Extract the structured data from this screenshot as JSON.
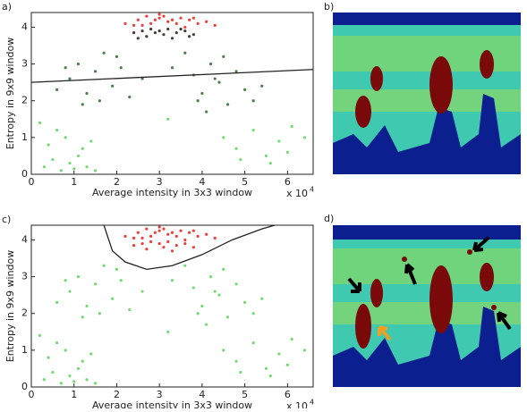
{
  "chart_data": [
    {
      "type": "scatter",
      "panel_label": "a)",
      "xlabel": "Average intensity in 3x3 window",
      "ylabel": "Entropy in 9x9 window",
      "x_scale_label": "x 10",
      "x_scale_exponent": "4",
      "xlim": [
        0,
        6.6
      ],
      "ylim": [
        0,
        4.4
      ],
      "xticks": [
        0,
        1,
        2,
        3,
        4,
        5,
        6
      ],
      "yticks": [
        0,
        1,
        2,
        3,
        4
      ],
      "series": [
        {
          "color": "#5cd35c",
          "x": [
            0.3,
            0.5,
            0.7,
            0.9,
            1.1,
            1.3,
            1.5,
            0.4,
            0.8,
            1.2,
            0.6,
            1.0,
            4.5,
            4.8,
            5.2,
            5.5,
            5.8,
            6.1,
            6.4,
            4.9,
            5.6,
            6.0,
            0.2,
            1.4,
            3.2
          ],
          "values": [
            0.2,
            0.4,
            0.1,
            0.3,
            0.5,
            0.2,
            0.1,
            0.8,
            1.0,
            0.7,
            1.2,
            0.15,
            1.0,
            0.7,
            1.2,
            0.5,
            0.9,
            1.3,
            1.0,
            0.4,
            0.3,
            0.6,
            1.4,
            0.9,
            1.5
          ]
        },
        {
          "color": "#2f6a2f",
          "x": [
            0.6,
            0.9,
            1.1,
            1.3,
            1.5,
            1.7,
            1.9,
            2.1,
            2.3,
            1.2,
            1.6,
            2.0,
            0.8,
            3.6,
            3.8,
            4.0,
            4.2,
            4.4,
            4.6,
            4.8,
            5.0,
            5.2,
            4.1,
            4.5,
            3.9,
            4.3,
            5.4,
            2.6,
            3.3
          ],
          "values": [
            2.3,
            2.6,
            3.0,
            2.2,
            2.8,
            3.3,
            2.4,
            2.9,
            2.1,
            1.9,
            2.0,
            3.2,
            2.9,
            3.3,
            2.7,
            2.2,
            3.0,
            2.5,
            1.9,
            2.8,
            2.3,
            2.0,
            1.7,
            3.2,
            2.0,
            2.6,
            2.4,
            2.6,
            2.9
          ]
        },
        {
          "color": "#e8201c",
          "x": [
            2.2,
            2.5,
            2.7,
            2.9,
            3.0,
            3.1,
            3.3,
            3.5,
            3.7,
            3.9,
            4.1,
            4.3,
            2.6,
            2.8,
            3.2,
            3.4,
            3.6,
            2.4,
            3.0,
            3.8
          ],
          "values": [
            4.1,
            4.2,
            4.3,
            4.2,
            4.25,
            4.3,
            4.2,
            4.25,
            4.2,
            4.1,
            4.15,
            4.05,
            4.05,
            4.1,
            4.15,
            4.1,
            4.0,
            4.05,
            4.35,
            4.25
          ]
        },
        {
          "color": "#2a1a12",
          "x": [
            2.4,
            2.6,
            2.8,
            3.0,
            3.2,
            3.4,
            3.6,
            3.8,
            2.7,
            3.1,
            3.3,
            2.9,
            3.5,
            2.5,
            3.7
          ],
          "values": [
            3.85,
            3.9,
            3.95,
            3.9,
            3.95,
            3.85,
            3.9,
            3.8,
            3.75,
            3.8,
            3.7,
            3.85,
            3.95,
            3.7,
            3.75
          ]
        }
      ],
      "boundary": {
        "color": "#222222",
        "x": [
          0,
          6.6
        ],
        "y": [
          2.5,
          2.85
        ]
      }
    },
    {
      "type": "scatter",
      "panel_label": "c)",
      "xlabel": "Average intensity in 3x3 window",
      "ylabel": "Entropy in 9x9 window",
      "x_scale_label": "x 10",
      "x_scale_exponent": "4",
      "xlim": [
        0,
        6.6
      ],
      "ylim": [
        0,
        4.4
      ],
      "xticks": [
        0,
        1,
        2,
        3,
        4,
        5,
        6
      ],
      "yticks": [
        0,
        1,
        2,
        3,
        4
      ],
      "series": [
        {
          "color": "#5cd35c",
          "x": [
            0.3,
            0.5,
            0.7,
            0.9,
            1.1,
            1.3,
            1.5,
            0.4,
            0.8,
            1.2,
            0.6,
            1.0,
            4.5,
            4.8,
            5.2,
            5.5,
            5.8,
            6.1,
            6.4,
            4.9,
            5.6,
            6.0,
            0.2,
            1.4,
            3.2,
            0.6,
            0.9,
            1.1,
            1.3,
            1.5,
            1.7,
            1.9,
            2.1,
            2.3,
            1.2,
            1.6,
            2.0,
            0.8,
            3.6,
            3.8,
            4.0,
            4.2,
            4.4,
            4.6,
            4.8,
            5.0,
            5.2,
            4.1,
            4.5,
            3.9,
            4.3,
            5.4,
            2.6,
            3.3
          ],
          "values": [
            0.2,
            0.4,
            0.1,
            0.3,
            0.5,
            0.2,
            0.1,
            0.8,
            1.0,
            0.7,
            1.2,
            0.15,
            1.0,
            0.7,
            1.2,
            0.5,
            0.9,
            1.3,
            1.0,
            0.4,
            0.3,
            0.6,
            1.4,
            0.9,
            1.5,
            2.3,
            2.6,
            3.0,
            2.2,
            2.8,
            3.3,
            2.4,
            2.9,
            2.1,
            1.9,
            2.0,
            3.2,
            2.9,
            3.3,
            2.7,
            2.2,
            3.0,
            2.5,
            1.9,
            2.8,
            2.3,
            2.0,
            1.7,
            3.2,
            2.0,
            2.6,
            2.4,
            2.6,
            2.9
          ]
        },
        {
          "color": "#e8201c",
          "x": [
            2.2,
            2.5,
            2.7,
            2.9,
            3.0,
            3.1,
            3.3,
            3.5,
            3.7,
            3.9,
            4.1,
            4.3,
            2.6,
            2.8,
            3.2,
            3.4,
            3.6,
            2.4,
            3.0,
            3.8,
            2.4,
            2.6,
            2.8,
            3.0,
            3.2,
            3.4,
            3.6,
            3.8,
            2.7,
            3.1,
            3.3
          ],
          "values": [
            4.1,
            4.2,
            4.3,
            4.2,
            4.25,
            4.3,
            4.2,
            4.25,
            4.2,
            4.1,
            4.15,
            4.05,
            4.05,
            4.1,
            4.15,
            4.1,
            4.0,
            4.05,
            4.35,
            4.25,
            3.85,
            3.9,
            3.95,
            3.9,
            3.95,
            3.85,
            3.9,
            3.8,
            3.75,
            3.8,
            3.7
          ]
        }
      ],
      "boundary": {
        "color": "#222222",
        "x": [
          1.7,
          1.9,
          2.2,
          2.7,
          3.3,
          4.0,
          4.7,
          5.4,
          5.7
        ],
        "y": [
          4.4,
          3.7,
          3.4,
          3.2,
          3.3,
          3.6,
          4.0,
          4.3,
          4.4
        ]
      }
    }
  ],
  "images": [
    {
      "label": "b)"
    },
    {
      "label": "d)"
    }
  ]
}
